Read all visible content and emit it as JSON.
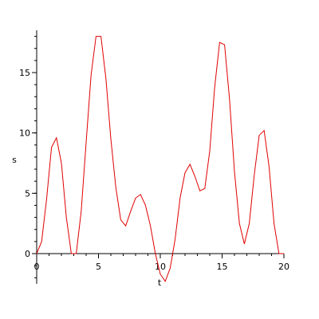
{
  "chart_data": {
    "type": "line",
    "xlabel": "t",
    "ylabel": "s",
    "xlim": [
      0,
      20
    ],
    "ylim": [
      -2.5,
      18.5
    ],
    "grid": false,
    "legend": "none",
    "x_ticks": [
      0,
      5,
      10,
      15,
      20
    ],
    "y_ticks": [
      0,
      5,
      10,
      15
    ],
    "x_minor_step": 1,
    "y_minor_step": 1,
    "series": [
      {
        "color": "#e00000",
        "x": [
          0,
          0.4,
          0.8,
          1.2,
          1.6,
          2.0,
          2.4,
          2.8,
          3.2,
          3.6,
          4.0,
          4.4,
          4.8,
          5.2,
          5.6,
          6.0,
          6.4,
          6.8,
          7.2,
          7.6,
          8.0,
          8.4,
          8.8,
          9.2,
          9.6,
          10.0,
          10.4,
          10.8,
          11.2,
          11.6,
          12.0,
          12.4,
          12.8,
          13.2,
          13.6,
          14.0,
          14.4,
          14.8,
          15.2,
          15.6,
          16.0,
          16.4,
          16.8,
          17.2,
          17.6,
          18.0,
          18.4,
          18.8,
          19.2,
          19.6,
          20.0
        ],
        "y": [
          0,
          1.0,
          4.5,
          8.8,
          9.6,
          7.5,
          3.0,
          0,
          0,
          3.5,
          9.2,
          14.8,
          18.0,
          18.0,
          14.5,
          9.5,
          5.5,
          2.8,
          2.3,
          3.5,
          4.6,
          4.9,
          4.0,
          2.3,
          0,
          -1.7,
          -2.3,
          -1.2,
          1.2,
          4.6,
          6.7,
          7.4,
          6.4,
          5.2,
          5.4,
          8.5,
          13.8,
          17.5,
          17.3,
          12.8,
          6.8,
          2.5,
          0.8,
          2.5,
          6.5,
          9.8,
          10.2,
          7.2,
          2.5,
          0,
          0
        ]
      }
    ]
  }
}
